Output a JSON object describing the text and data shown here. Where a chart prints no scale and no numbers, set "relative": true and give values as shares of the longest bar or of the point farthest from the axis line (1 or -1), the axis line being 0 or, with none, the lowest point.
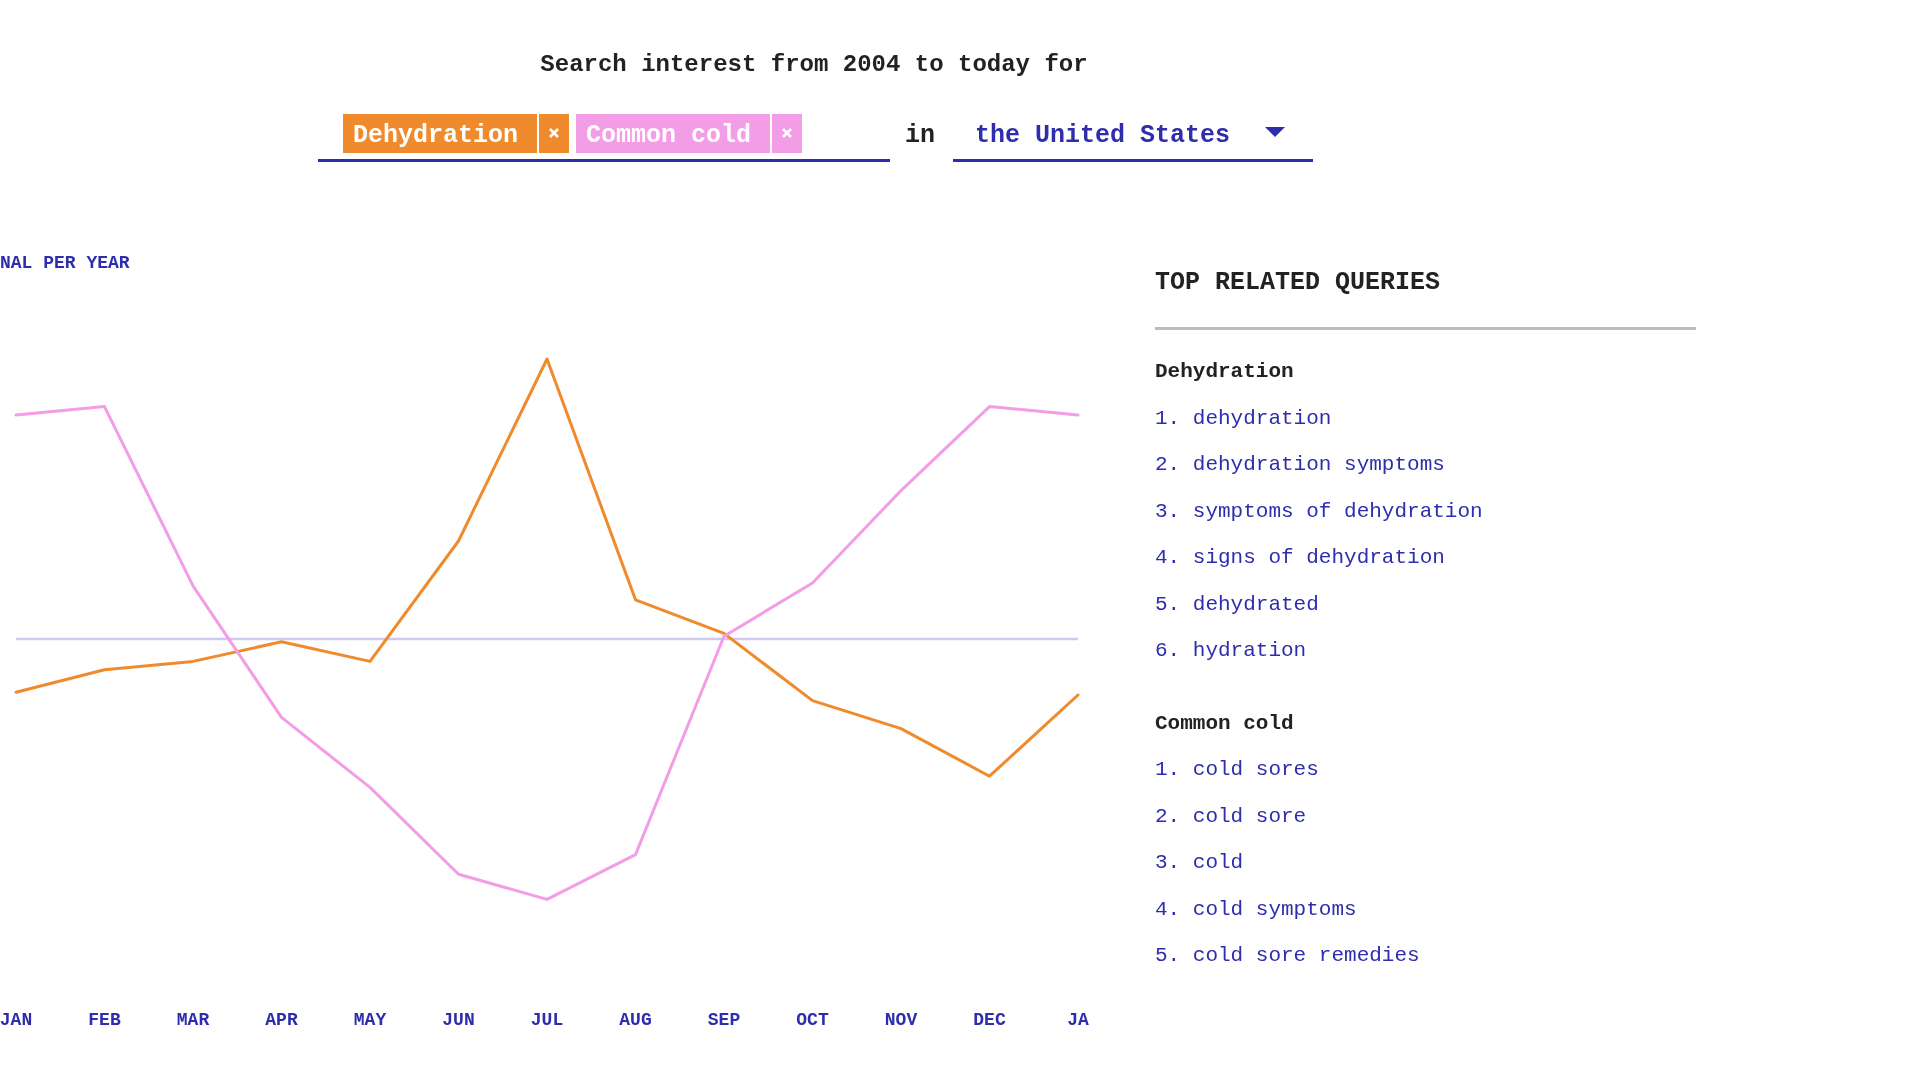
{
  "chart_data": {
    "type": "line",
    "title": "Search interest from 2004 to today for",
    "ylabel": "NAL PER YEAR",
    "relative": true,
    "legend": "top",
    "categories": [
      "JAN",
      "FEB",
      "MAR",
      "APR",
      "MAY",
      "JUN",
      "JUL",
      "AUG",
      "SEP",
      "OCT",
      "NOV",
      "DEC",
      "JA"
    ],
    "series": [
      {
        "name": "Dehydration",
        "color": "#ef8b2c",
        "values": [
          -0.19,
          -0.11,
          -0.08,
          -0.01,
          -0.08,
          0.35,
          1,
          0.14,
          0.02,
          -0.22,
          -0.32,
          -0.49,
          -0.2
        ]
      },
      {
        "name": "Common cold",
        "color": "#f29de6",
        "values": [
          0.8,
          0.83,
          0.19,
          -0.28,
          -0.53,
          -0.84,
          -0.93,
          -0.77,
          0.01,
          0.2,
          0.53,
          0.83,
          0.8
        ]
      }
    ],
    "annotations": [
      "in",
      "the United States",
      "TOP RELATED QUERIES",
      "Dehydration",
      "1. dehydration",
      "2. dehydration symptoms",
      "3. symptoms of dehydration",
      "4. signs of dehydration",
      "5. dehydrated",
      "6. hydration",
      "Common cold",
      "1. cold sores",
      "2. cold sore",
      "3. cold",
      "4. cold symptoms",
      "5. cold sore remedies"
    ]
  }
}
